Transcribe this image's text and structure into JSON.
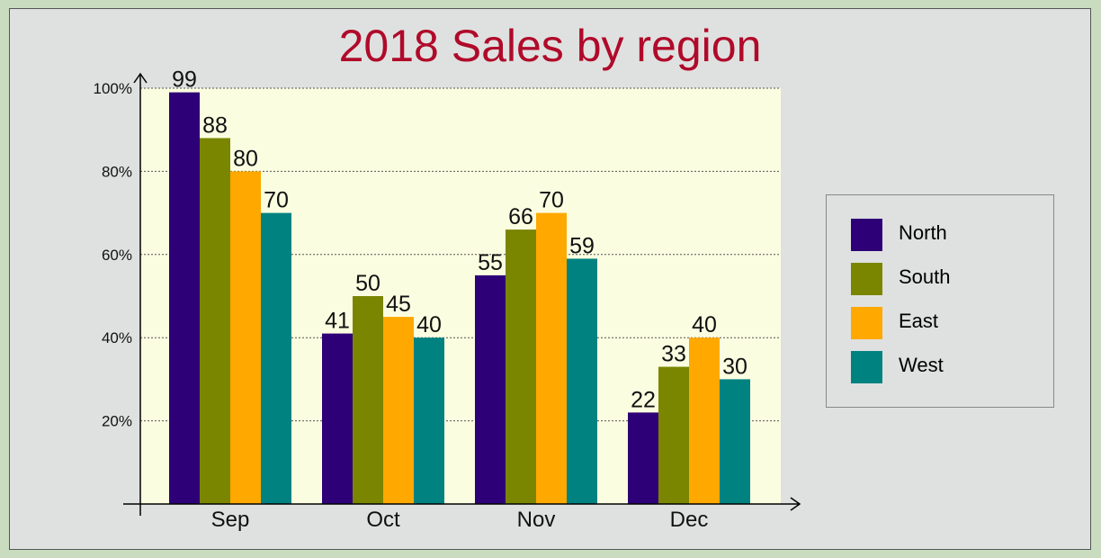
{
  "chart_data": {
    "type": "bar",
    "title": "2018 Sales by region",
    "xlabel": "",
    "ylabel": "",
    "categories": [
      "Sep",
      "Oct",
      "Nov",
      "Dec"
    ],
    "ylim": [
      0,
      100
    ],
    "yticks": [
      20,
      40,
      60,
      80,
      100
    ],
    "ytick_labels": [
      "20%",
      "40%",
      "60%",
      "80%",
      "100%"
    ],
    "grid": "horizontal dotted",
    "legend_position": "right",
    "plot_background": "#fbfde0",
    "series": [
      {
        "name": "North",
        "color": "#2e0077",
        "values": [
          99,
          41,
          55,
          22
        ]
      },
      {
        "name": "South",
        "color": "#7a8600",
        "values": [
          88,
          50,
          66,
          33
        ]
      },
      {
        "name": "East",
        "color": "#fea800",
        "values": [
          80,
          45,
          70,
          40
        ]
      },
      {
        "name": "West",
        "color": "#008280",
        "values": [
          70,
          40,
          59,
          30
        ]
      }
    ]
  }
}
